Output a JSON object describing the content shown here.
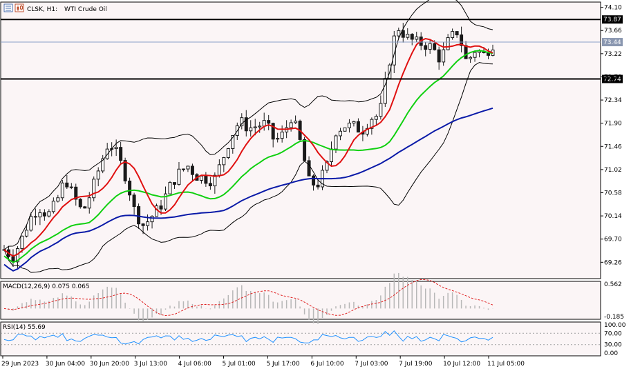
{
  "header": {
    "symbol": "CLSK, H1:",
    "name": "WTI Crude Oil",
    "icons": [
      "window-list-icon",
      "candles-icon"
    ]
  },
  "colors": {
    "background": "#fbf5f6",
    "bull": "#1a1a1a",
    "bear": "#1a1a1a",
    "ma_fast": "#e01010",
    "ma_mid": "#10d010",
    "ma_slow": "#0a1aa8",
    "bollinger": "#000000",
    "level_line": "#000000",
    "bid_line": "#8aa0c8",
    "macd_hist": "#b8b8b8",
    "macd_signal": "#e02020",
    "rsi_line": "#1e90ff",
    "rsi_levels": "#a0a0a0"
  },
  "chart_data": {
    "type": "candlestick",
    "price_axis_ticks": [
      "74.10",
      "73.66",
      "73.22",
      "72.78",
      "72.34",
      "71.90",
      "71.46",
      "71.02",
      "70.58",
      "70.14",
      "69.70",
      "69.26"
    ],
    "ylim": [
      68.95,
      74.2
    ],
    "level_lines": [
      {
        "label": "73.87",
        "value": 73.87
      },
      {
        "label": "72.74",
        "value": 72.74
      }
    ],
    "current_price": {
      "label": "73.44",
      "value": 73.44
    },
    "time_axis_labels": [
      "29 Jun 2023",
      "30 Jun 04:00",
      "30 Jun 20:00",
      "3 Jul 13:00",
      "4 Jul 06:00",
      "5 Jul 01:00",
      "5 Jul 17:00",
      "6 Jul 10:00",
      "7 Jul 03:00",
      "7 Jul 19:00",
      "10 Jul 12:00",
      "11 Jul 05:00"
    ],
    "candle_count": 110,
    "price_path": [
      69.5,
      69.35,
      69.7,
      70.1,
      70.3,
      70.15,
      70.4,
      70.85,
      70.5,
      70.2,
      70.6,
      71.1,
      71.55,
      71.3,
      70.85,
      70.2,
      69.95,
      70.15,
      70.35,
      70.7,
      70.95,
      71.1,
      70.9,
      70.85,
      70.8,
      71.2,
      71.65,
      71.95,
      71.8,
      71.85,
      71.9,
      71.55,
      71.7,
      72.05,
      71.5,
      70.75,
      70.75,
      71.1,
      71.75,
      71.85,
      71.85,
      71.75,
      72.0,
      72.05,
      72.95,
      73.75,
      73.55,
      73.45,
      73.4,
      73.35,
      73.1,
      73.5,
      73.65,
      73.05,
      73.3,
      73.2,
      73.4
    ],
    "macd": {
      "label": "MACD(12,26,9) 0.075 0.065",
      "axis_ticks": [
        "0.562",
        "-0.185"
      ],
      "ylim": [
        -0.185,
        0.562
      ]
    },
    "rsi": {
      "label": "RSI(14) 55.69",
      "axis_ticks": [
        "100.00",
        "70.00",
        "30.00",
        "0.00"
      ],
      "levels": [
        70,
        30
      ],
      "last": 55.69
    }
  }
}
